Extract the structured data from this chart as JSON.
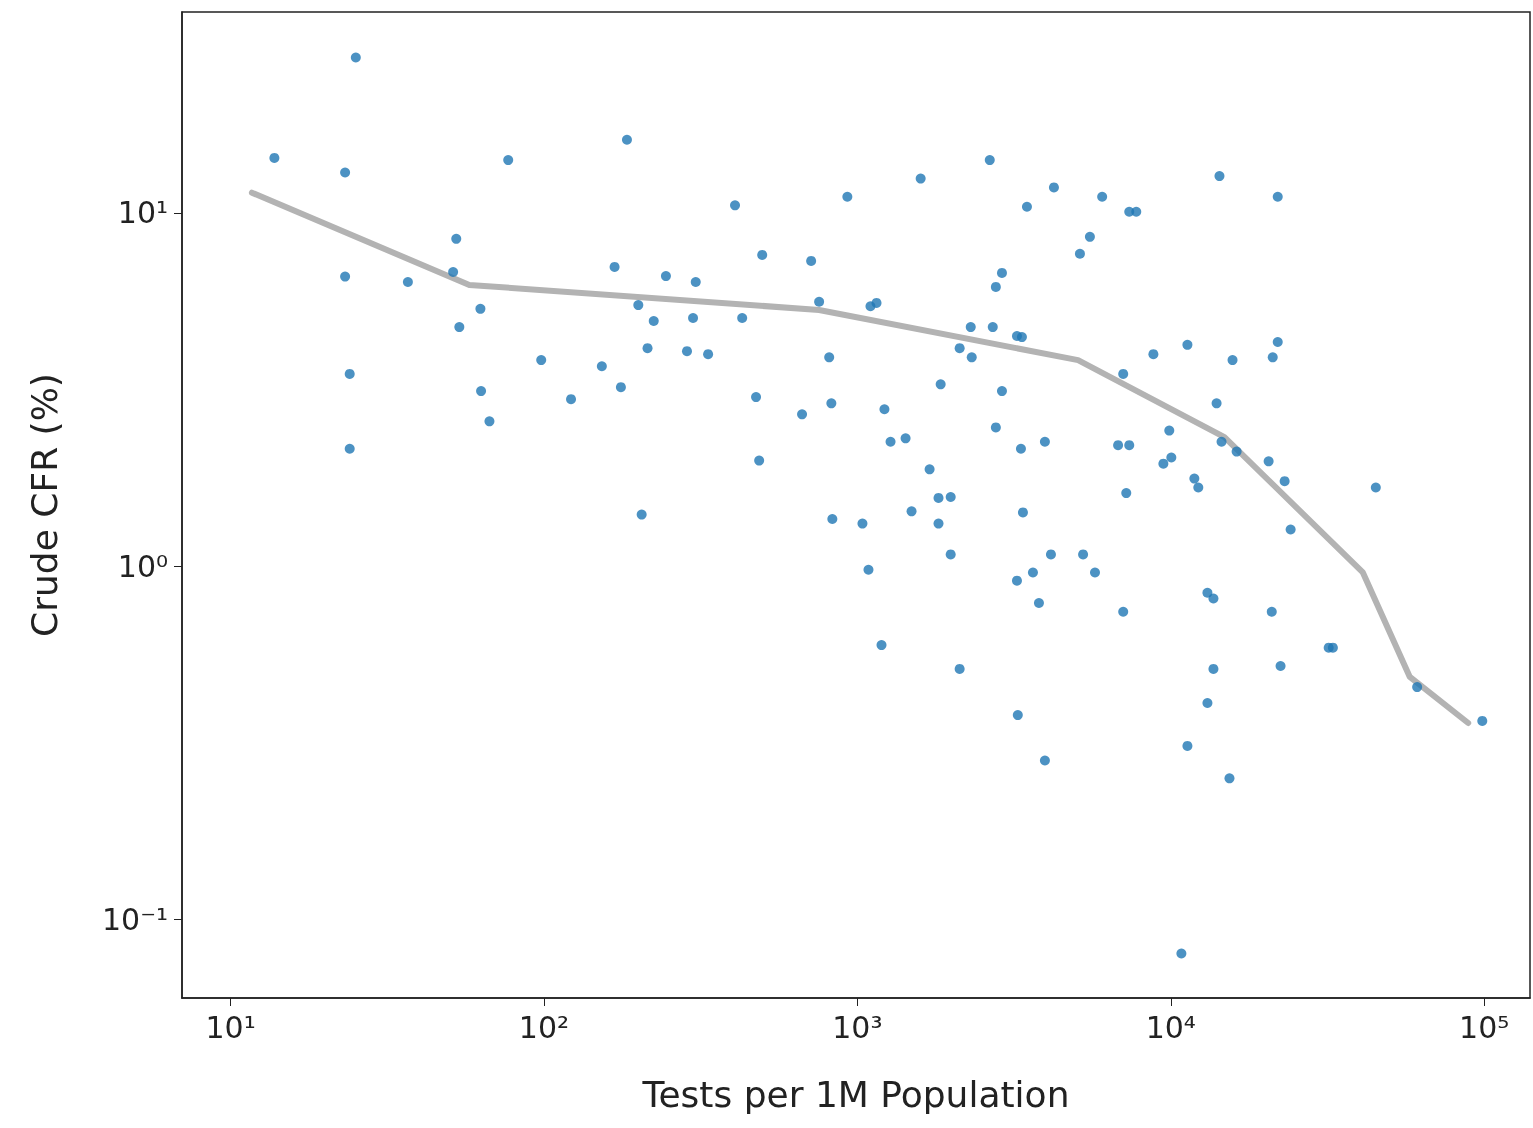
{
  "chart_data": {
    "type": "scatter",
    "xlabel": "Tests per 1M Population",
    "ylabel": "Crude CFR (%)",
    "log": "xy",
    "grid": false,
    "xlim": [
      7,
      140000
    ],
    "ylim": [
      0.06,
      37
    ],
    "xticks": [
      {
        "value": 10,
        "label": "10¹"
      },
      {
        "value": 100,
        "label": "10²"
      },
      {
        "value": 1000,
        "label": "10³"
      },
      {
        "value": 10000,
        "label": "10⁴"
      },
      {
        "value": 100000,
        "label": "10⁵"
      }
    ],
    "yticks": [
      {
        "value": 0.1,
        "label": "10⁻¹"
      },
      {
        "value": 1,
        "label": "10⁰"
      },
      {
        "value": 10,
        "label": "10¹"
      }
    ],
    "series": [
      {
        "marker": "circle",
        "color": "#1f77b4",
        "x": [
          13.8,
          25.1,
          23.2,
          23.2,
          24,
          24,
          36.8,
          52.5,
          51.3,
          53.7,
          62.7,
          63,
          67,
          76.9,
          98,
          122,
          153,
          168,
          176,
          184,
          200,
          205,
          214,
          224,
          245,
          286,
          299,
          305,
          334,
          407,
          429,
          475,
          497,
          486,
          666,
          712,
          755,
          813,
          826,
          832,
          929,
          1038,
          1085,
          1101,
          1151,
          1194,
          1220,
          1276,
          1425,
          1489,
          1592,
          1700,
          1815,
          1844,
          1815,
          1985,
          1985,
          2120,
          2120,
          2300,
          2317,
          2645,
          2704,
          2766,
          2766,
          2893,
          2893,
          3230,
          3350,
          3326,
          3230,
          3375,
          3250,
          3476,
          3632,
          3796,
          3966,
          3966,
          4146,
          4238,
          5130,
          5250,
          5520,
          5730,
          6040,
          6790,
          7050,
          7050,
          7210,
          7370,
          7370,
          7760,
          8800,
          9470,
          9890,
          10040,
          10810,
          11300,
          11300,
          11890,
          12240,
          13090,
          13090,
          13680,
          13680,
          14000,
          14300,
          14520,
          15390,
          15740,
          16220,
          20520,
          21000,
          21150,
          21940,
          21940,
          22400,
          23080,
          24120,
          31900,
          32900,
          45100,
          61100,
          98600
        ],
        "values": [
          14.3,
          27.5,
          13,
          6.6,
          3.5,
          2.15,
          6.37,
          8.44,
          6.8,
          4.75,
          5.35,
          3.13,
          2.57,
          14.1,
          3.83,
          2.97,
          3.68,
          7.03,
          3.21,
          16.1,
          5.48,
          1.4,
          4.14,
          4.94,
          6.62,
          4.06,
          5.04,
          6.37,
          3.98,
          10.5,
          5.04,
          3.01,
          7.6,
          1.99,
          2.69,
          7.31,
          5.6,
          3.9,
          2.89,
          1.36,
          11.1,
          1.32,
          0.977,
          5.44,
          5.56,
          0.598,
          2.78,
          2.25,
          2.3,
          1.43,
          12.5,
          1.88,
          1.56,
          3.27,
          1.32,
          1.57,
          1.08,
          0.512,
          4.14,
          4.75,
          3.9,
          14.1,
          4.75,
          6.17,
          2.47,
          6.76,
          3.13,
          4.48,
          4.45,
          2.15,
          0.91,
          1.42,
          0.379,
          10.4,
          0.96,
          0.787,
          0.282,
          2.25,
          1.08,
          11.8,
          7.66,
          1.08,
          8.55,
          0.96,
          11.1,
          2.2,
          3.5,
          0.743,
          1.61,
          2.2,
          10.07,
          10.07,
          3.98,
          1.95,
          2.42,
          2.03,
          0.0802,
          0.31,
          4.23,
          1.77,
          1.67,
          0.41,
          0.841,
          0.81,
          0.512,
          2.89,
          12.7,
          2.25,
          0.251,
          3.83,
          2.11,
          1.98,
          0.743,
          3.9,
          4.31,
          11.1,
          0.522,
          1.74,
          1.27,
          0.588,
          0.588,
          1.67,
          0.455,
          0.365
        ]
      },
      {
        "type": "line",
        "marker": "none",
        "line_style": "solid",
        "color": "#b3b3b3",
        "x": [
          11.7,
          57.8,
          755,
          5060,
          14830,
          41000,
          57900,
          88900
        ],
        "values": [
          11.4,
          6.25,
          5.31,
          3.83,
          2.32,
          0.96,
          0.486,
          0.36
        ]
      }
    ]
  }
}
